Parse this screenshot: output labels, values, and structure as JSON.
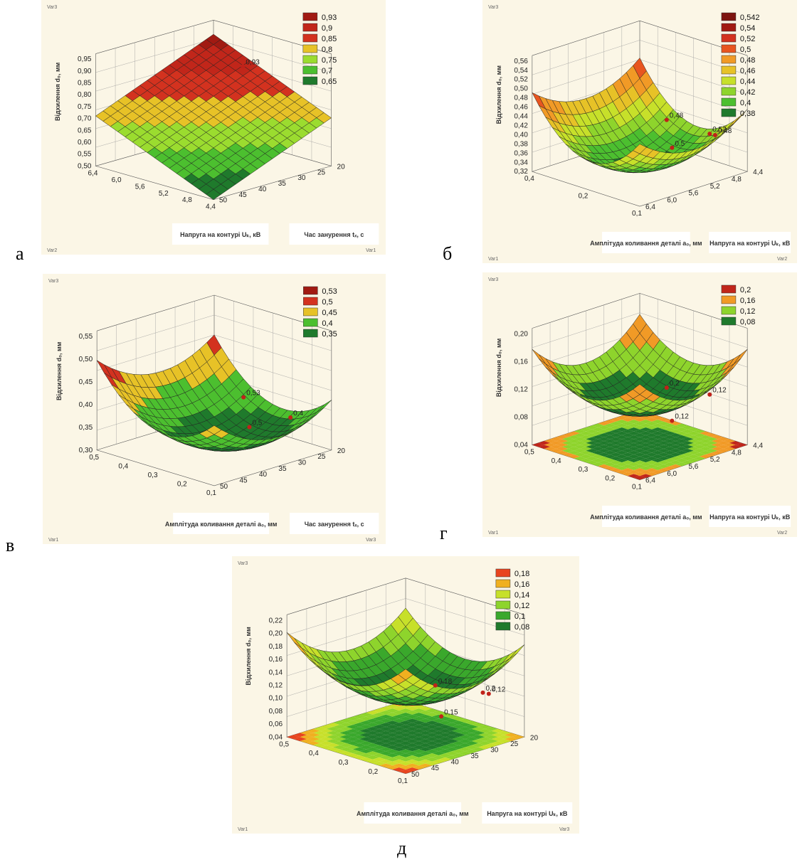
{
  "letters": [
    "а",
    "б",
    "в",
    "г",
    "д"
  ],
  "colors": {
    "panel_bg": "#fbf6e6",
    "dark_green": "#1f7a2c",
    "green": "#4cbf2f",
    "light_green": "#9bdc2f",
    "yellow": "#e7c227",
    "orange": "#f19a26",
    "red": "#d3321f",
    "dark_red": "#a11a12"
  },
  "chart_data": [
    {
      "type": "surface3d",
      "panel": "а",
      "corner_labels": [
        "Var3",
        "Var2",
        "Var1"
      ],
      "zlabel": "Відхилення d₀, мм",
      "xlabel": "Напруга на контурі Uₖ, кВ",
      "ylabel": "Час занурення tₓ, с",
      "x_ticks": [
        "6,4",
        "6,0",
        "5,6",
        "5,2",
        "4,8",
        "4,4"
      ],
      "y_ticks": [
        "20",
        "25",
        "30",
        "35",
        "40",
        "45",
        "50"
      ],
      "z_ticks": [
        "0,95",
        "0,90",
        "0,85",
        "0,80",
        "0,75",
        "0,70",
        "0,65",
        "0,60",
        "0,55",
        "0,50"
      ],
      "legend": [
        "0,93",
        "0,9",
        "0,85",
        "0,8",
        "0,75",
        "0,7",
        "0,65"
      ],
      "legend_colors": [
        "#a11a12",
        "#c1261a",
        "#d3321f",
        "#e7c227",
        "#9bdc2f",
        "#4cbf2f",
        "#1f7a2c"
      ],
      "point_labels": [
        "0,93"
      ]
    },
    {
      "type": "surface3d",
      "panel": "б",
      "corner_labels": [
        "Var3",
        "Var1",
        "Var2"
      ],
      "zlabel": "Відхилення d₀, мм",
      "xlabel": "Амплітуда коливання деталі a₀, мм",
      "ylabel": "Напруга на контурі Uₖ, кВ",
      "x_ticks": [
        "0,4",
        "0,2",
        "0,1"
      ],
      "y_ticks": [
        "4,4",
        "4,8",
        "5,2",
        "5,6",
        "6,0",
        "6,4"
      ],
      "z_ticks": [
        "0,56",
        "0,54",
        "0,52",
        "0,50",
        "0,48",
        "0,46",
        "0,44",
        "0,42",
        "0,40",
        "0,38",
        "0,36",
        "0,34",
        "0,32"
      ],
      "legend": [
        "0,542",
        "0,54",
        "0,52",
        "0,5",
        "0,48",
        "0,46",
        "0,44",
        "0,42",
        "0,4",
        "0,38"
      ],
      "legend_colors": [
        "#7d1410",
        "#a11a12",
        "#d3321f",
        "#e8551f",
        "#f19a26",
        "#e7c227",
        "#c7e02a",
        "#8ed42c",
        "#4cbf2f",
        "#1f7a2c"
      ],
      "point_labels": [
        "0,48",
        "0,5",
        "0,52",
        "0,48"
      ]
    },
    {
      "type": "surface3d",
      "panel": "в",
      "corner_labels": [
        "Var3",
        "Var1",
        "Var3"
      ],
      "zlabel": "Відхилення d₀, мм",
      "xlabel": "Амплітуда коливання деталі a₀, мм",
      "ylabel": "Час занурення tₓ, с",
      "x_ticks": [
        "0,5",
        "0,4",
        "0,3",
        "0,2",
        "0,1"
      ],
      "y_ticks": [
        "20",
        "25",
        "30",
        "35",
        "40",
        "45",
        "50"
      ],
      "z_ticks": [
        "0,55",
        "0,50",
        "0,45",
        "0,40",
        "0,35",
        "0,30"
      ],
      "legend": [
        "0,53",
        "0,5",
        "0,45",
        "0,4",
        "0,35"
      ],
      "legend_colors": [
        "#a11a12",
        "#d3321f",
        "#e7c227",
        "#4cbf2f",
        "#1f7a2c"
      ],
      "point_labels": [
        "0,53",
        "0,5",
        "0,4"
      ]
    },
    {
      "type": "surface3d",
      "panel": "г",
      "corner_labels": [
        "Var3",
        "Var1",
        "Var2"
      ],
      "zlabel": "Відхилення d₀, мм",
      "xlabel": "Амплітуда коливання деталі a₀, мм",
      "ylabel": "Напруга на контурі Uₖ, кВ",
      "x_ticks": [
        "0,5",
        "0,4",
        "0,3",
        "0,2",
        "0,1"
      ],
      "y_ticks": [
        "4,4",
        "4,8",
        "5,2",
        "5,6",
        "6,0",
        "6,4"
      ],
      "z_ticks": [
        "0,20",
        "0,16",
        "0,12",
        "0,08",
        "0,04"
      ],
      "legend": [
        "0,2",
        "0,16",
        "0,12",
        "0,08"
      ],
      "legend_colors": [
        "#c1261a",
        "#f19a26",
        "#8ed42c",
        "#1f7a2c"
      ],
      "point_labels": [
        "0,2",
        "0,12",
        "0,12"
      ]
    },
    {
      "type": "surface3d",
      "panel": "д",
      "corner_labels": [
        "Var3",
        "Var1",
        "Var3"
      ],
      "zlabel": "Відхилення d₀, мм",
      "xlabel": "Амплітуда коливання деталі a₀, мм",
      "ylabel": "Напруга на контурі Uₖ, кВ",
      "x_ticks": [
        "0,5",
        "0,4",
        "0,3",
        "0,2",
        "0,1"
      ],
      "y_ticks": [
        "20",
        "25",
        "30",
        "35",
        "40",
        "45",
        "50"
      ],
      "z_ticks": [
        "0,22",
        "0,20",
        "0,18",
        "0,16",
        "0,14",
        "0,12",
        "0,10",
        "0,08",
        "0,06",
        "0,04"
      ],
      "legend": [
        "0,18",
        "0,16",
        "0,14",
        "0,12",
        "0,1",
        "0,08"
      ],
      "legend_colors": [
        "#e8451f",
        "#f0b020",
        "#c7e02a",
        "#8ed42c",
        "#3aa82c",
        "#1f7a2c"
      ],
      "point_labels": [
        "0,18",
        "0,15",
        "0,2",
        "0,12"
      ]
    }
  ]
}
